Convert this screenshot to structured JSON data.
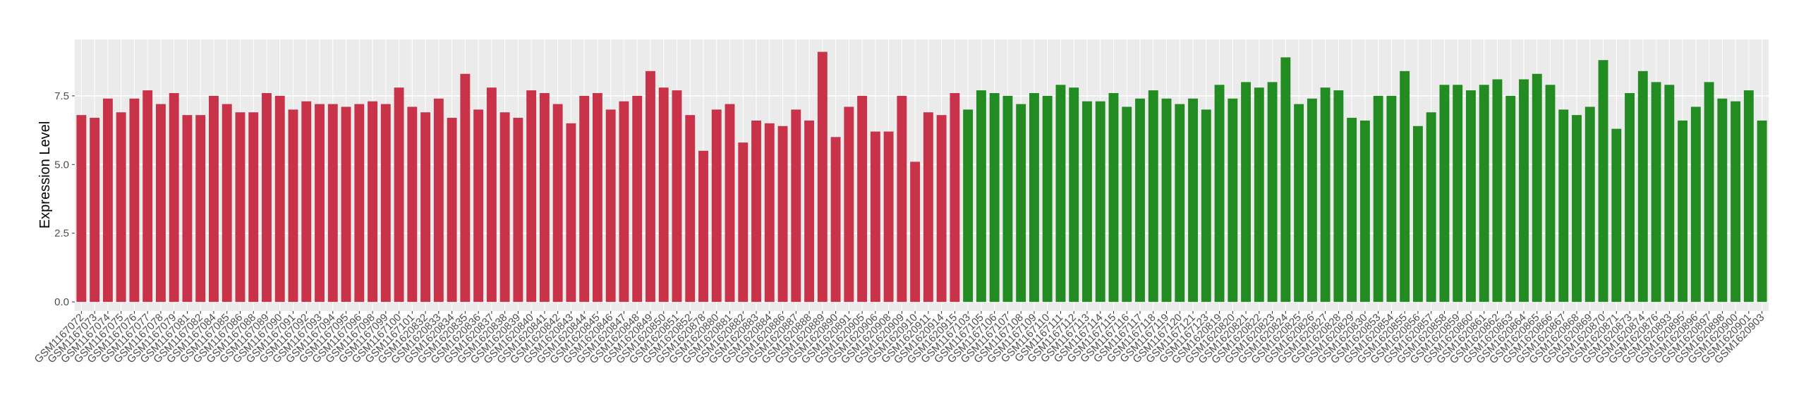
{
  "chart_data": {
    "type": "bar",
    "y_label": "Expression Level",
    "categories": [
      "GSM1167072",
      "GSM1167073",
      "GSM1167074",
      "GSM1167075",
      "GSM1167076",
      "GSM1167077",
      "GSM1167078",
      "GSM1167079",
      "GSM1167081",
      "GSM1167082",
      "GSM1167084",
      "GSM1167085",
      "GSM1167086",
      "GSM1167088",
      "GSM1167089",
      "GSM1167090",
      "GSM1167091",
      "GSM1167092",
      "GSM1167093",
      "GSM1167094",
      "GSM1167095",
      "GSM1167096",
      "GSM1167098",
      "GSM1167099",
      "GSM1167100",
      "GSM1167101",
      "GSM1620832",
      "GSM1620833",
      "GSM1620834",
      "GSM1620835",
      "GSM1620836",
      "GSM1620837",
      "GSM1620838",
      "GSM1620839",
      "GSM1620840",
      "GSM1620841",
      "GSM1620842",
      "GSM1620843",
      "GSM1620844",
      "GSM1620845",
      "GSM1620846",
      "GSM1620847",
      "GSM1620848",
      "GSM1620849",
      "GSM1620850",
      "GSM1620851",
      "GSM1620852",
      "GSM1620878",
      "GSM1620880",
      "GSM1620881",
      "GSM1620882",
      "GSM1620883",
      "GSM1620884",
      "GSM1620886",
      "GSM1620887",
      "GSM1620888",
      "GSM1620889",
      "GSM1620890",
      "GSM1620891",
      "GSM1620905",
      "GSM1620906",
      "GSM1620908",
      "GSM1620909",
      "GSM1620910",
      "GSM1620911",
      "GSM1620914",
      "GSM1620915",
      "GSM1167103",
      "GSM1167105",
      "GSM1167106",
      "GSM1167107",
      "GSM1167108",
      "GSM1167109",
      "GSM1167110",
      "GSM1167111",
      "GSM1167112",
      "GSM1167113",
      "GSM1167114",
      "GSM1167115",
      "GSM1167116",
      "GSM1167117",
      "GSM1167118",
      "GSM1167119",
      "GSM1167120",
      "GSM1167121",
      "GSM1167123",
      "GSM1620819",
      "GSM1620820",
      "GSM1620821",
      "GSM1620822",
      "GSM1620823",
      "GSM1620824",
      "GSM1620825",
      "GSM1620826",
      "GSM1620827",
      "GSM1620828",
      "GSM1620829",
      "GSM1620830",
      "GSM1620853",
      "GSM1620854",
      "GSM1620855",
      "GSM1620856",
      "GSM1620857",
      "GSM1620858",
      "GSM1620859",
      "GSM1620860",
      "GSM1620861",
      "GSM1620862",
      "GSM1620863",
      "GSM1620864",
      "GSM1620865",
      "GSM1620866",
      "GSM1620867",
      "GSM1620868",
      "GSM1620869",
      "GSM1620870",
      "GSM1620871",
      "GSM1620873",
      "GSM1620874",
      "GSM1620876",
      "GSM1620893",
      "GSM1620895",
      "GSM1620896",
      "GSM1620897",
      "GSM1620898",
      "GSM1620900",
      "GSM1620901",
      "GSM1620903"
    ],
    "values": [
      6.8,
      6.7,
      7.4,
      6.9,
      7.4,
      7.7,
      7.2,
      7.6,
      6.8,
      6.8,
      7.5,
      7.2,
      6.9,
      6.9,
      7.6,
      7.5,
      7.0,
      7.3,
      7.2,
      7.2,
      7.1,
      7.2,
      7.3,
      7.2,
      7.8,
      7.1,
      6.9,
      7.4,
      6.7,
      8.3,
      7.0,
      7.8,
      6.9,
      6.7,
      7.7,
      7.6,
      7.2,
      6.5,
      7.5,
      7.6,
      7.0,
      7.3,
      7.5,
      8.4,
      7.8,
      7.7,
      6.8,
      5.5,
      7.0,
      7.2,
      5.8,
      6.6,
      6.5,
      6.4,
      7.0,
      6.6,
      9.1,
      6.0,
      7.1,
      7.5,
      6.2,
      6.2,
      7.5,
      5.1,
      6.9,
      6.8,
      7.6,
      7.0,
      7.7,
      7.6,
      7.5,
      7.2,
      7.6,
      7.5,
      7.9,
      7.8,
      7.3,
      7.3,
      7.6,
      7.1,
      7.4,
      7.7,
      7.4,
      7.2,
      7.4,
      7.0,
      7.9,
      7.4,
      8.0,
      7.8,
      8.0,
      8.9,
      7.2,
      7.4,
      7.8,
      7.7,
      6.7,
      6.6,
      7.5,
      7.5,
      8.4,
      6.4,
      6.9,
      7.9,
      7.9,
      7.7,
      7.9,
      8.1,
      7.5,
      8.1,
      8.3,
      7.9,
      7.0,
      6.8,
      7.1,
      8.8,
      6.3,
      7.6,
      8.4,
      8.0,
      7.9,
      6.6,
      7.1,
      8.0,
      7.4,
      7.3,
      7.7,
      6.6
    ],
    "colors": [
      "#c8334a",
      "#c8334a",
      "#c8334a",
      "#c8334a",
      "#c8334a",
      "#c8334a",
      "#c8334a",
      "#c8334a",
      "#c8334a",
      "#c8334a",
      "#c8334a",
      "#c8334a",
      "#c8334a",
      "#c8334a",
      "#c8334a",
      "#c8334a",
      "#c8334a",
      "#c8334a",
      "#c8334a",
      "#c8334a",
      "#c8334a",
      "#c8334a",
      "#c8334a",
      "#c8334a",
      "#c8334a",
      "#c8334a",
      "#c8334a",
      "#c8334a",
      "#c8334a",
      "#c8334a",
      "#c8334a",
      "#c8334a",
      "#c8334a",
      "#c8334a",
      "#c8334a",
      "#c8334a",
      "#c8334a",
      "#c8334a",
      "#c8334a",
      "#c8334a",
      "#c8334a",
      "#c8334a",
      "#c8334a",
      "#c8334a",
      "#c8334a",
      "#c8334a",
      "#c8334a",
      "#c8334a",
      "#c8334a",
      "#c8334a",
      "#c8334a",
      "#c8334a",
      "#c8334a",
      "#c8334a",
      "#c8334a",
      "#c8334a",
      "#c8334a",
      "#c8334a",
      "#c8334a",
      "#c8334a",
      "#c8334a",
      "#c8334a",
      "#c8334a",
      "#c8334a",
      "#c8334a",
      "#c8334a",
      "#c8334a",
      "#228b22",
      "#228b22",
      "#228b22",
      "#228b22",
      "#228b22",
      "#228b22",
      "#228b22",
      "#228b22",
      "#228b22",
      "#228b22",
      "#228b22",
      "#228b22",
      "#228b22",
      "#228b22",
      "#228b22",
      "#228b22",
      "#228b22",
      "#228b22",
      "#228b22",
      "#228b22",
      "#228b22",
      "#228b22",
      "#228b22",
      "#228b22",
      "#228b22",
      "#228b22",
      "#228b22",
      "#228b22",
      "#228b22",
      "#228b22",
      "#228b22",
      "#228b22",
      "#228b22",
      "#228b22",
      "#228b22",
      "#228b22",
      "#228b22",
      "#228b22",
      "#228b22",
      "#228b22",
      "#228b22",
      "#228b22",
      "#228b22",
      "#228b22",
      "#228b22",
      "#228b22",
      "#228b22",
      "#228b22",
      "#228b22",
      "#228b22",
      "#228b22",
      "#228b22",
      "#228b22",
      "#228b22",
      "#228b22",
      "#228b22",
      "#228b22",
      "#228b22",
      "#228b22",
      "#228b22",
      "#228b22"
    ],
    "ylim": [
      -0.33,
      9.55
    ],
    "yticks": [
      {
        "value": 0,
        "label": "0.0"
      },
      2.5,
      {
        "value": 5,
        "label": "5.0"
      },
      7.5
    ],
    "grid": true
  }
}
